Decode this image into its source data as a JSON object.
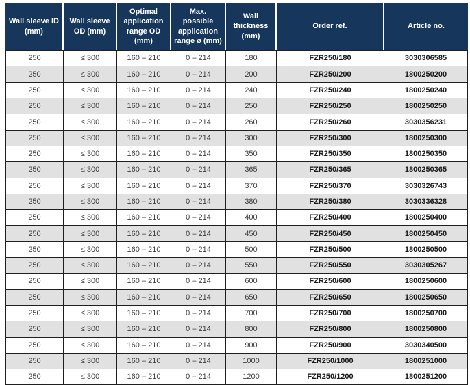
{
  "table": {
    "columns": [
      "Wall sleeve ID (mm)",
      "Wall sleeve OD (mm)",
      "Optimal application range OD (mm)",
      "Max. possible application range ø (mm)",
      "Wall thickness (mm)",
      "Order ref.",
      "Article no."
    ],
    "rows": [
      [
        "250",
        "≤ 300",
        "160 – 210",
        "0 – 214",
        "180",
        "FZR250/180",
        "3030306585"
      ],
      [
        "250",
        "≤ 300",
        "160 – 210",
        "0 – 214",
        "200",
        "FZR250/200",
        "1800250200"
      ],
      [
        "250",
        "≤ 300",
        "160 – 210",
        "0 – 214",
        "240",
        "FZR250/240",
        "1800250240"
      ],
      [
        "250",
        "≤ 300",
        "160 – 210",
        "0 – 214",
        "250",
        "FZR250/250",
        "1800250250"
      ],
      [
        "250",
        "≤ 300",
        "160 – 210",
        "0 – 214",
        "260",
        "FZR250/260",
        "3030356231"
      ],
      [
        "250",
        "≤ 300",
        "160 – 210",
        "0 – 214",
        "300",
        "FZR250/300",
        "1800250300"
      ],
      [
        "250",
        "≤ 300",
        "160 – 210",
        "0 – 214",
        "350",
        "FZR250/350",
        "1800250350"
      ],
      [
        "250",
        "≤ 300",
        "160 – 210",
        "0 – 214",
        "365",
        "FZR250/365",
        "1800250365"
      ],
      [
        "250",
        "≤ 300",
        "160 – 210",
        "0 – 214",
        "370",
        "FZR250/370",
        "3030326743"
      ],
      [
        "250",
        "≤ 300",
        "160 – 210",
        "0 – 214",
        "380",
        "FZR250/380",
        "3030336328"
      ],
      [
        "250",
        "≤ 300",
        "160 – 210",
        "0 – 214",
        "400",
        "FZR250/400",
        "1800250400"
      ],
      [
        "250",
        "≤ 300",
        "160 – 210",
        "0 – 214",
        "450",
        "FZR250/450",
        "1800250450"
      ],
      [
        "250",
        "≤ 300",
        "160 – 210",
        "0 – 214",
        "500",
        "FZR250/500",
        "1800250500"
      ],
      [
        "250",
        "≤ 300",
        "160 – 210",
        "0 – 214",
        "550",
        "FZR250/550",
        "3030305267"
      ],
      [
        "250",
        "≤ 300",
        "160 – 210",
        "0 – 214",
        "600",
        "FZR250/600",
        "1800250600"
      ],
      [
        "250",
        "≤ 300",
        "160 – 210",
        "0 – 214",
        "650",
        "FZR250/650",
        "1800250650"
      ],
      [
        "250",
        "≤ 300",
        "160 – 210",
        "0 – 214",
        "700",
        "FZR250/700",
        "1800250700"
      ],
      [
        "250",
        "≤ 300",
        "160 – 210",
        "0 – 214",
        "800",
        "FZR250/800",
        "1800250800"
      ],
      [
        "250",
        "≤ 300",
        "160 – 210",
        "0 – 214",
        "900",
        "FZR250/900",
        "3030340500"
      ],
      [
        "250",
        "≤ 300",
        "160 – 210",
        "0 – 214",
        "1000",
        "FZR250/1000",
        "1800251000"
      ],
      [
        "250",
        "≤ 300",
        "160 – 210",
        "0 – 214",
        "1200",
        "FZR250/1200",
        "1800251200"
      ]
    ]
  },
  "colors": {
    "header_bg": "#16365C",
    "header_text": "#FFFFFF",
    "row_alt_bg": "#E1E1E1",
    "border": "#1F1F1F"
  }
}
